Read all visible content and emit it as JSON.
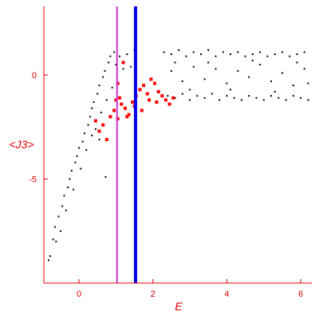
{
  "chart_data": {
    "type": "scatter",
    "title": "",
    "xlabel": "E",
    "ylabel": "<J3>",
    "xlim": [
      -0.95,
      6.3
    ],
    "ylim": [
      -10,
      3.3
    ],
    "xticks": [
      0,
      2,
      4,
      6
    ],
    "xtick_labels": [
      "0",
      "2",
      "4",
      "6"
    ],
    "yticks": [
      0,
      -5
    ],
    "ytick_labels": [
      "0",
      "-5"
    ],
    "grid": false,
    "axis_color": "#e00000",
    "vertical_lines": [
      {
        "x": 1.03,
        "color": "#cc33cc"
      },
      {
        "x": 1.53,
        "color": "#0000ee"
      }
    ],
    "series": [
      {
        "color": "#000000",
        "points": [
          [
            -0.82,
            -8.9
          ],
          [
            -0.78,
            -8.7
          ],
          [
            -0.7,
            -7.9
          ],
          [
            -0.65,
            -7.3
          ],
          [
            -0.62,
            -8.0
          ],
          [
            -0.55,
            -6.8
          ],
          [
            -0.5,
            -7.5
          ],
          [
            -0.45,
            -6.3
          ],
          [
            -0.4,
            -5.8
          ],
          [
            -0.35,
            -6.5
          ],
          [
            -0.3,
            -5.4
          ],
          [
            -0.25,
            -5.0
          ],
          [
            -0.2,
            -4.6
          ],
          [
            -0.15,
            -5.5
          ],
          [
            -0.1,
            -4.2
          ],
          [
            -0.05,
            -3.9
          ],
          [
            0.0,
            -3.5
          ],
          [
            0.05,
            -4.5
          ],
          [
            0.1,
            -3.2
          ],
          [
            0.15,
            -2.8
          ],
          [
            0.2,
            -3.6
          ],
          [
            0.25,
            -2.4
          ],
          [
            0.3,
            -2.0
          ],
          [
            0.35,
            -1.6
          ],
          [
            0.4,
            -1.3
          ],
          [
            0.45,
            -2.6
          ],
          [
            0.5,
            -0.9
          ],
          [
            0.55,
            -0.5
          ],
          [
            0.6,
            -1.8
          ],
          [
            0.65,
            -0.1
          ],
          [
            0.7,
            0.2
          ],
          [
            0.75,
            -1.2
          ],
          [
            0.8,
            0.6
          ],
          [
            0.85,
            0.9
          ],
          [
            0.9,
            -0.6
          ],
          [
            0.95,
            1.1
          ],
          [
            1.0,
            0.5
          ],
          [
            1.1,
            0.9
          ],
          [
            1.2,
            0.3
          ],
          [
            1.3,
            1.0
          ],
          [
            1.4,
            0.4
          ],
          [
            1.5,
            1.2
          ],
          [
            0.72,
            -4.9
          ],
          [
            0.55,
            -3.1
          ],
          [
            0.35,
            -2.9
          ],
          [
            2.3,
            1.1
          ],
          [
            2.5,
            1.0
          ],
          [
            2.7,
            1.2
          ],
          [
            2.9,
            0.9
          ],
          [
            3.1,
            1.1
          ],
          [
            3.3,
            1.0
          ],
          [
            3.5,
            1.2
          ],
          [
            3.7,
            0.9
          ],
          [
            3.9,
            1.1
          ],
          [
            4.1,
            1.0
          ],
          [
            4.3,
            1.1
          ],
          [
            4.5,
            0.9
          ],
          [
            4.7,
            1.0
          ],
          [
            4.9,
            1.1
          ],
          [
            5.1,
            0.9
          ],
          [
            5.3,
            1.0
          ],
          [
            5.5,
            1.1
          ],
          [
            5.7,
            0.9
          ],
          [
            5.9,
            1.0
          ],
          [
            6.1,
            1.1
          ],
          [
            2.4,
            -1.0
          ],
          [
            2.6,
            -1.1
          ],
          [
            2.8,
            -0.9
          ],
          [
            3.0,
            -1.2
          ],
          [
            3.2,
            -1.0
          ],
          [
            3.4,
            -1.1
          ],
          [
            3.6,
            -0.9
          ],
          [
            3.8,
            -1.2
          ],
          [
            4.0,
            -1.0
          ],
          [
            4.2,
            -1.1
          ],
          [
            4.4,
            -1.2
          ],
          [
            4.6,
            -1.0
          ],
          [
            4.8,
            -1.1
          ],
          [
            5.0,
            -1.2
          ],
          [
            5.2,
            -1.0
          ],
          [
            5.4,
            -1.1
          ],
          [
            5.6,
            -1.2
          ],
          [
            5.8,
            -1.0
          ],
          [
            6.0,
            -1.1
          ],
          [
            6.2,
            -1.2
          ],
          [
            2.5,
            0.2
          ],
          [
            2.8,
            -0.3
          ],
          [
            3.1,
            0.4
          ],
          [
            3.4,
            -0.2
          ],
          [
            3.7,
            0.3
          ],
          [
            4.0,
            -0.4
          ],
          [
            4.3,
            0.2
          ],
          [
            4.6,
            -0.1
          ],
          [
            4.9,
            0.5
          ],
          [
            5.2,
            -0.3
          ],
          [
            5.5,
            0.1
          ],
          [
            5.8,
            -0.5
          ],
          [
            6.1,
            0.3
          ],
          [
            2.6,
            0.6
          ],
          [
            3.0,
            -0.7
          ],
          [
            3.5,
            0.6
          ],
          [
            4.1,
            -0.7
          ],
          [
            4.7,
            0.7
          ],
          [
            5.3,
            -0.8
          ],
          [
            5.9,
            0.6
          ],
          [
            6.2,
            -0.4
          ]
        ]
      },
      {
        "color": "#ff0000",
        "points": [
          [
            0.45,
            -2.2
          ],
          [
            0.55,
            -2.7
          ],
          [
            0.65,
            -2.4
          ],
          [
            0.75,
            -3.1
          ],
          [
            0.85,
            -2.0
          ],
          [
            0.95,
            -1.7
          ],
          [
            1.05,
            -2.1
          ],
          [
            1.1,
            -1.1
          ],
          [
            1.15,
            -1.4
          ],
          [
            1.25,
            -1.6
          ],
          [
            1.35,
            -1.9
          ],
          [
            1.45,
            -1.3
          ],
          [
            1.55,
            -1.0
          ],
          [
            1.65,
            -0.7
          ],
          [
            1.75,
            -0.5
          ],
          [
            1.85,
            -0.9
          ],
          [
            1.95,
            -0.2
          ],
          [
            2.05,
            -0.4
          ],
          [
            2.15,
            -0.8
          ],
          [
            2.25,
            -1.0
          ],
          [
            2.35,
            -1.2
          ],
          [
            2.45,
            -1.4
          ],
          [
            2.55,
            -1.1
          ],
          [
            1.2,
            0.6
          ],
          [
            1.3,
            -2.0
          ],
          [
            1.5,
            -1.5
          ],
          [
            1.7,
            -1.7
          ],
          [
            1.9,
            -1.2
          ],
          [
            2.1,
            -1.3
          ],
          [
            1.0,
            -1.2
          ],
          [
            1.05,
            -0.4
          ]
        ]
      }
    ]
  }
}
